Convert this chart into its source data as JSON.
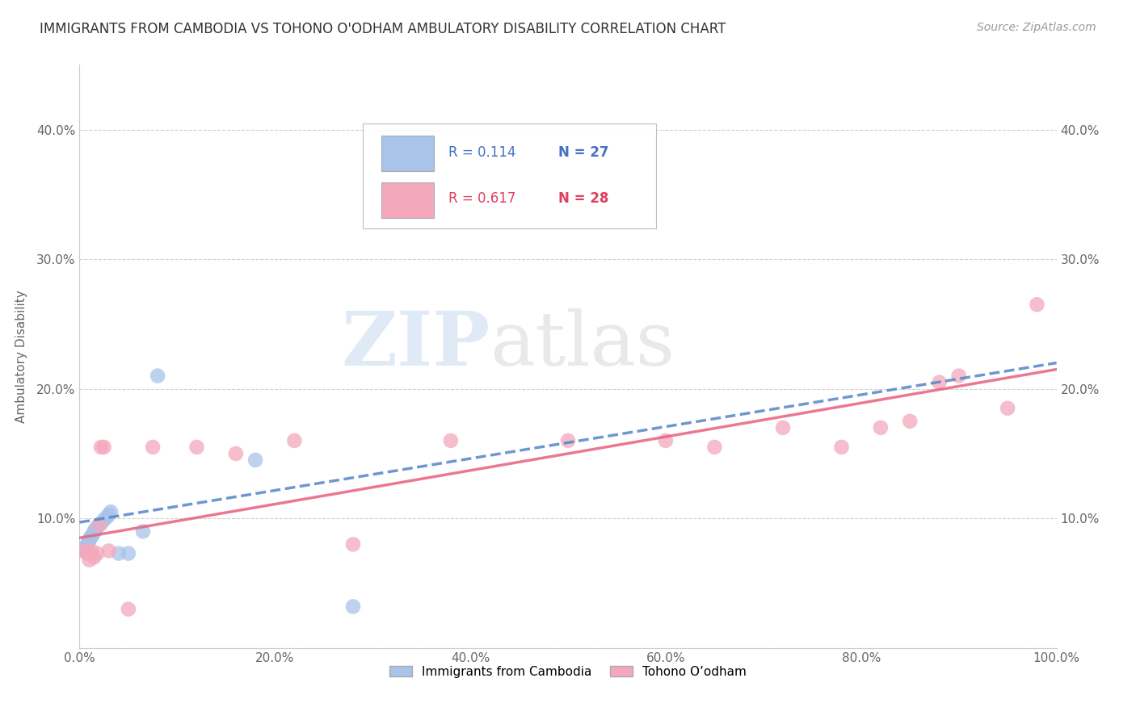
{
  "title": "IMMIGRANTS FROM CAMBODIA VS TOHONO O'ODHAM AMBULATORY DISABILITY CORRELATION CHART",
  "source": "Source: ZipAtlas.com",
  "ylabel": "Ambulatory Disability",
  "watermark_zip": "ZIP",
  "watermark_atlas": "atlas",
  "legend_r1": "R = 0.114",
  "legend_n1": "N = 27",
  "legend_r2": "R = 0.617",
  "legend_n2": "N = 28",
  "label1": "Immigrants from Cambodia",
  "label2": "Tohono O’odham",
  "color1": "#a8c4e8",
  "color2": "#f4a8bc",
  "line1_color": "#5585c8",
  "line2_color": "#e86080",
  "xlim": [
    0.0,
    1.0
  ],
  "ylim": [
    0.0,
    0.45
  ],
  "xticks": [
    0.0,
    0.2,
    0.4,
    0.6,
    0.8,
    1.0
  ],
  "yticks": [
    0.0,
    0.1,
    0.2,
    0.3,
    0.4
  ],
  "xtick_labels": [
    "0.0%",
    "20.0%",
    "40.0%",
    "60.0%",
    "80.0%",
    "100.0%"
  ],
  "ytick_labels": [
    "",
    "10.0%",
    "20.0%",
    "30.0%",
    "40.0%"
  ],
  "scatter1_x": [
    0.003,
    0.005,
    0.006,
    0.007,
    0.008,
    0.009,
    0.01,
    0.011,
    0.012,
    0.013,
    0.014,
    0.015,
    0.016,
    0.017,
    0.018,
    0.02,
    0.022,
    0.025,
    0.028,
    0.03,
    0.032,
    0.04,
    0.05,
    0.065,
    0.08,
    0.18,
    0.28
  ],
  "scatter1_y": [
    0.075,
    0.077,
    0.078,
    0.079,
    0.08,
    0.082,
    0.083,
    0.085,
    0.086,
    0.087,
    0.088,
    0.09,
    0.091,
    0.092,
    0.093,
    0.095,
    0.096,
    0.099,
    0.101,
    0.103,
    0.105,
    0.073,
    0.073,
    0.09,
    0.21,
    0.145,
    0.032
  ],
  "scatter2_x": [
    0.005,
    0.008,
    0.01,
    0.012,
    0.015,
    0.018,
    0.02,
    0.022,
    0.025,
    0.03,
    0.05,
    0.075,
    0.12,
    0.16,
    0.22,
    0.28,
    0.38,
    0.5,
    0.6,
    0.65,
    0.72,
    0.78,
    0.82,
    0.85,
    0.88,
    0.9,
    0.95,
    0.98
  ],
  "scatter2_y": [
    0.075,
    0.073,
    0.068,
    0.075,
    0.07,
    0.073,
    0.095,
    0.155,
    0.155,
    0.075,
    0.03,
    0.155,
    0.155,
    0.15,
    0.16,
    0.08,
    0.16,
    0.16,
    0.16,
    0.155,
    0.17,
    0.155,
    0.17,
    0.175,
    0.205,
    0.21,
    0.185,
    0.265
  ],
  "line1_x_start": 0.0,
  "line1_x_end": 1.0,
  "line1_y_start": 0.097,
  "line1_y_end": 0.22,
  "line2_x_start": 0.0,
  "line2_x_end": 1.0,
  "line2_y_start": 0.085,
  "line2_y_end": 0.215
}
